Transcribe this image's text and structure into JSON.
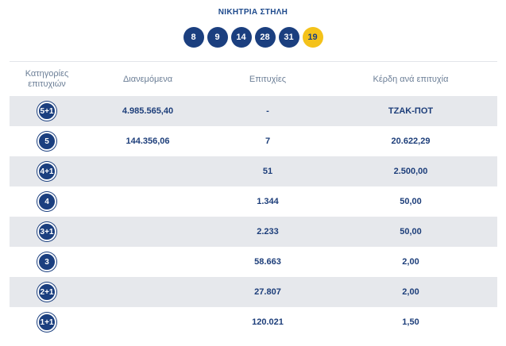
{
  "title": "ΝΙΚΗΤΡΙΑ ΣΤΗΛΗ",
  "winning_numbers": [
    "8",
    "9",
    "14",
    "28",
    "31"
  ],
  "joker_number": "19",
  "colors": {
    "primary": "#1b3f7f",
    "joker": "#f4c21a",
    "row_shade": "#e6e8ec"
  },
  "headers": {
    "category_line1": "Κατηγορίες",
    "category_line2": "επιτυχιών",
    "distributed": "Διανεμόμενα",
    "winners": "Επιτυχίες",
    "prize": "Κέρδη ανά επιτυχία"
  },
  "rows": [
    {
      "category": "5+1",
      "distributed": "4.985.565,40",
      "winners": "-",
      "prize": "ΤΖΑΚ-ΠΟΤ"
    },
    {
      "category": "5",
      "distributed": "144.356,06",
      "winners": "7",
      "prize": "20.622,29"
    },
    {
      "category": "4+1",
      "distributed": "",
      "winners": "51",
      "prize": "2.500,00"
    },
    {
      "category": "4",
      "distributed": "",
      "winners": "1.344",
      "prize": "50,00"
    },
    {
      "category": "3+1",
      "distributed": "",
      "winners": "2.233",
      "prize": "50,00"
    },
    {
      "category": "3",
      "distributed": "",
      "winners": "58.663",
      "prize": "2,00"
    },
    {
      "category": "2+1",
      "distributed": "",
      "winners": "27.807",
      "prize": "2,00"
    },
    {
      "category": "1+1",
      "distributed": "",
      "winners": "120.021",
      "prize": "1,50"
    }
  ]
}
